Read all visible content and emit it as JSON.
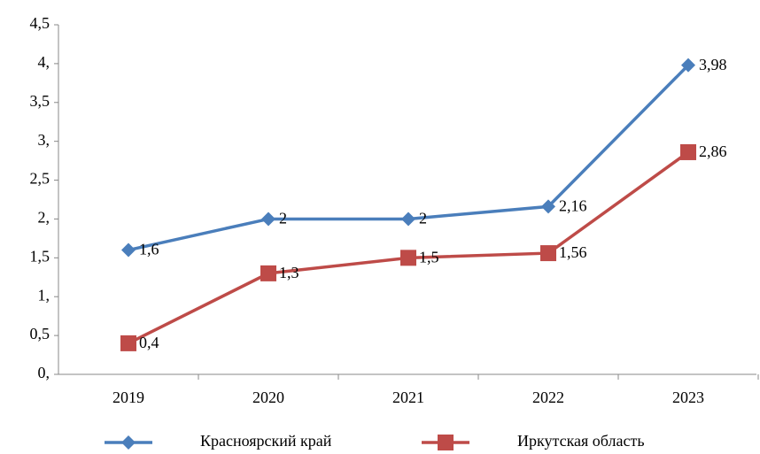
{
  "chart_data": {
    "type": "line",
    "categories": [
      "2019",
      "2020",
      "2021",
      "2022",
      "2023"
    ],
    "series": [
      {
        "name": "Красноярский край",
        "color": "#4a7ebb",
        "marker": "diamond",
        "values": [
          1.6,
          2,
          2,
          2.16,
          3.98
        ],
        "value_labels": [
          "1,6",
          "2",
          "2",
          "2,16",
          "3,98"
        ]
      },
      {
        "name": "Иркутская область",
        "color": "#be4b48",
        "marker": "square",
        "values": [
          0.4,
          1.3,
          1.5,
          1.56,
          2.86
        ],
        "value_labels": [
          "0,4",
          "1,3",
          "1,5",
          "1,56",
          "2,86"
        ]
      }
    ],
    "ylim": [
      0,
      4.5
    ],
    "yticks": [
      {
        "value": 0,
        "label": "0,"
      },
      {
        "value": 0.5,
        "label": "0,5"
      },
      {
        "value": 1,
        "label": "1,"
      },
      {
        "value": 1.5,
        "label": "1,5"
      },
      {
        "value": 2,
        "label": "2,"
      },
      {
        "value": 2.5,
        "label": "2,5"
      },
      {
        "value": 3,
        "label": "3,"
      },
      {
        "value": 3.5,
        "label": "3,5"
      },
      {
        "value": 4,
        "label": "4,"
      },
      {
        "value": 4.5,
        "label": "4,5"
      }
    ],
    "grid": false,
    "legend": "bottom"
  }
}
